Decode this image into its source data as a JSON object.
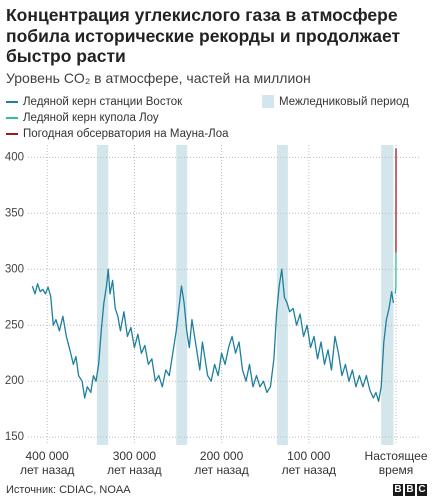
{
  "chart_data": {
    "type": "line",
    "title": "Концентрация углекислого газа в атмосфере побила исторические рекорды и продолжает быстро расти",
    "subtitle": "Уровень CO₂ в атмосфере, частей на миллион",
    "xlim": [
      -422000,
      27500
    ],
    "ylim": [
      143,
      411
    ],
    "xticks": [
      {
        "value": -400000,
        "label": "400 000\nлет назад"
      },
      {
        "value": -300000,
        "label": "300 000\nлет назад"
      },
      {
        "value": -200000,
        "label": "200 000\nлет назад"
      },
      {
        "value": -100000,
        "label": "100 000\nлет назад"
      },
      {
        "value": 0,
        "label": "Настоящее\nвремя"
      }
    ],
    "yticks": [
      150,
      200,
      250,
      300,
      350,
      400
    ],
    "grid": true,
    "bands": {
      "name": "Межледниковый период",
      "color": "#d3e6ec",
      "ranges": [
        [
          -343000,
          -330000
        ],
        [
          -252000,
          -239500
        ],
        [
          -136500,
          -124000
        ],
        [
          -17000,
          -3000
        ]
      ]
    },
    "series": [
      {
        "name": "Ледяной керн станции Восток",
        "color": "#1f7f9f",
        "x": [
          -417000,
          -414000,
          -411000,
          -408000,
          -405000,
          -402000,
          -399000,
          -396000,
          -393000,
          -390000,
          -386000,
          -382000,
          -378000,
          -374000,
          -370000,
          -367000,
          -364000,
          -360000,
          -357000,
          -354000,
          -350000,
          -347000,
          -344000,
          -341000,
          -338000,
          -335000,
          -332000,
          -330000,
          -328000,
          -325000,
          -322000,
          -319000,
          -316000,
          -312000,
          -308000,
          -304000,
          -300000,
          -296000,
          -292000,
          -288000,
          -284000,
          -280000,
          -276000,
          -272000,
          -268000,
          -264000,
          -260000,
          -256000,
          -252000,
          -249000,
          -246000,
          -243000,
          -240000,
          -237000,
          -234000,
          -231000,
          -228000,
          -225000,
          -222000,
          -219000,
          -216000,
          -212000,
          -208000,
          -204000,
          -200000,
          -196000,
          -192000,
          -188000,
          -184000,
          -180000,
          -176000,
          -172000,
          -168000,
          -164000,
          -160000,
          -156000,
          -152000,
          -148000,
          -144000,
          -140000,
          -137000,
          -134000,
          -131000,
          -128000,
          -125000,
          -122000,
          -118000,
          -114000,
          -110000,
          -106000,
          -102000,
          -98000,
          -94000,
          -90000,
          -86000,
          -82000,
          -78000,
          -74000,
          -70000,
          -66000,
          -62000,
          -58000,
          -54000,
          -50000,
          -46000,
          -42000,
          -38000,
          -34000,
          -30000,
          -26000,
          -23000,
          -20000,
          -17000,
          -14000,
          -11000,
          -8000,
          -5000,
          -3000
        ],
        "values": [
          285,
          278,
          287,
          280,
          282,
          278,
          284,
          276,
          250,
          255,
          245,
          258,
          240,
          228,
          215,
          222,
          205,
          200,
          185,
          195,
          190,
          205,
          200,
          215,
          245,
          270,
          285,
          300,
          278,
          290,
          265,
          258,
          245,
          262,
          240,
          248,
          230,
          242,
          225,
          232,
          215,
          220,
          200,
          205,
          195,
          210,
          205,
          225,
          245,
          265,
          285,
          270,
          245,
          230,
          255,
          240,
          225,
          210,
          235,
          220,
          205,
          200,
          215,
          205,
          225,
          215,
          230,
          240,
          225,
          235,
          210,
          200,
          215,
          195,
          205,
          195,
          200,
          190,
          195,
          220,
          260,
          285,
          300,
          275,
          270,
          262,
          265,
          250,
          260,
          240,
          250,
          230,
          240,
          220,
          235,
          215,
          228,
          210,
          240,
          225,
          205,
          215,
          200,
          210,
          195,
          205,
          195,
          205,
          192,
          185,
          190,
          182,
          195,
          235,
          255,
          265,
          280,
          270
        ]
      },
      {
        "name": "Ледяной керн купола Лоу",
        "color": "#2fbf9b",
        "x": [
          -1000,
          -500,
          -200,
          -100,
          -50
        ],
        "values": [
          278,
          281,
          284,
          292,
          315
        ]
      },
      {
        "name": "Погодная обсерватория на Мауна-Лоа",
        "color": "#a3161d",
        "x": [
          -60,
          -40,
          -20,
          0
        ],
        "values": [
          315,
          330,
          355,
          408
        ]
      }
    ],
    "source": "Источник: CDIAC, NOAA",
    "logo": [
      "B",
      "B",
      "C"
    ]
  }
}
